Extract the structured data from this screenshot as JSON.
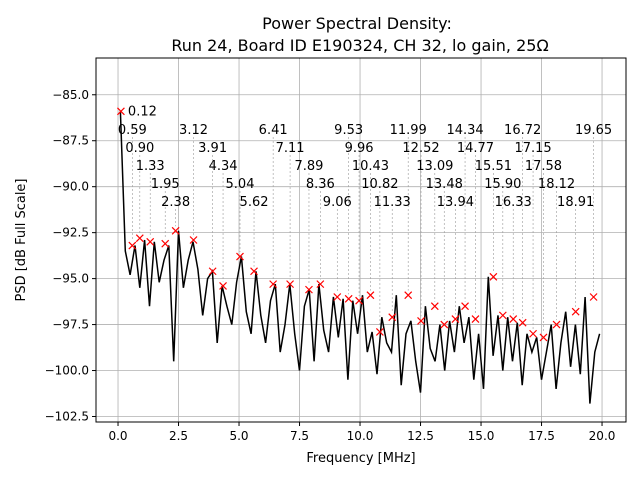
{
  "chart_data": {
    "type": "line",
    "title": "Power Spectral Density:",
    "subtitle": "Run 24, Board ID E190324, CH 32, lo gain, 25Ω",
    "xlabel": "Frequency [MHz]",
    "ylabel": "PSD [dB Full Scale]",
    "xlim": [
      -0.91,
      20.99
    ],
    "ylim": [
      -102.8,
      -83.0
    ],
    "xticks": [
      0.0,
      2.5,
      5.0,
      7.5,
      10.0,
      12.5,
      15.0,
      17.5,
      20.0
    ],
    "xtick_labels": [
      "0.0",
      "2.5",
      "5.0",
      "7.5",
      "10.0",
      "12.5",
      "15.0",
      "17.5",
      "20.0"
    ],
    "yticks": [
      -85.0,
      -87.5,
      -90.0,
      -92.5,
      -95.0,
      -97.5,
      -100.0,
      -102.5
    ],
    "ytick_labels": [
      "−85.0",
      "−87.5",
      "−90.0",
      "−92.5",
      "−95.0",
      "−97.5",
      "−100.0",
      "−102.5"
    ],
    "grid": true,
    "line_color": "#000000",
    "marker_color": "#ff0000",
    "trace": {
      "x_start": 0.1,
      "x_step": 0.2,
      "y": [
        -85.9,
        -93.5,
        -94.8,
        -93.2,
        -95.5,
        -92.9,
        -96.5,
        -93.0,
        -95.2,
        -94.0,
        -93.2,
        -99.5,
        -92.4,
        -95.5,
        -94.0,
        -93.0,
        -94.5,
        -97.0,
        -95.0,
        -94.6,
        -98.5,
        -95.4,
        -96.5,
        -97.5,
        -95.2,
        -93.8,
        -96.8,
        -98.0,
        -94.6,
        -97.0,
        -98.5,
        -96.2,
        -95.3,
        -99.0,
        -97.5,
        -95.3,
        -98.0,
        -100.0,
        -96.5,
        -95.6,
        -99.5,
        -95.3,
        -97.8,
        -99.0,
        -96.0,
        -98.2,
        -96.1,
        -100.5,
        -96.2,
        -98.0,
        -95.9,
        -99.0,
        -97.9,
        -100.2,
        -97.1,
        -98.5,
        -99.0,
        -95.9,
        -100.8,
        -98.0,
        -97.3,
        -99.5,
        -101.2,
        -96.5,
        -98.8,
        -99.5,
        -97.5,
        -100.0,
        -97.3,
        -99.0,
        -96.5,
        -98.5,
        -97.1,
        -100.5,
        -98.0,
        -101.0,
        -94.9,
        -99.2,
        -97.0,
        -100.0,
        -97.1,
        -99.5,
        -97.4,
        -100.8,
        -98.0,
        -99.0,
        -98.2,
        -100.5,
        -99.0,
        -97.5,
        -101.0,
        -98.5,
        -96.8,
        -99.8,
        -97.5,
        -100.2,
        -96.0,
        -101.8,
        -99.0,
        -98.0
      ]
    },
    "peaks": [
      {
        "x": 0.12,
        "y": -85.9,
        "label": "0.12"
      },
      {
        "x": 0.59,
        "y": -93.2,
        "label": "0.59"
      },
      {
        "x": 0.9,
        "y": -92.8,
        "label": "0.90"
      },
      {
        "x": 1.33,
        "y": -93.0,
        "label": "1.33"
      },
      {
        "x": 1.95,
        "y": -93.1,
        "label": "1.95"
      },
      {
        "x": 2.38,
        "y": -92.4,
        "label": "2.38"
      },
      {
        "x": 3.12,
        "y": -92.9,
        "label": "3.12"
      },
      {
        "x": 3.91,
        "y": -94.6,
        "label": "3.91"
      },
      {
        "x": 4.34,
        "y": -95.4,
        "label": "4.34"
      },
      {
        "x": 5.04,
        "y": -93.8,
        "label": "5.04"
      },
      {
        "x": 5.62,
        "y": -94.6,
        "label": "5.62"
      },
      {
        "x": 6.41,
        "y": -95.3,
        "label": "6.41"
      },
      {
        "x": 7.11,
        "y": -95.3,
        "label": "7.11"
      },
      {
        "x": 7.89,
        "y": -95.6,
        "label": "7.89"
      },
      {
        "x": 8.36,
        "y": -95.3,
        "label": "8.36"
      },
      {
        "x": 9.06,
        "y": -96.0,
        "label": "9.06"
      },
      {
        "x": 9.53,
        "y": -96.1,
        "label": "9.53"
      },
      {
        "x": 9.96,
        "y": -96.2,
        "label": "9.96"
      },
      {
        "x": 10.43,
        "y": -95.9,
        "label": "10.43"
      },
      {
        "x": 10.82,
        "y": -97.9,
        "label": "10.82"
      },
      {
        "x": 11.33,
        "y": -97.1,
        "label": "11.33"
      },
      {
        "x": 11.99,
        "y": -95.9,
        "label": "11.99"
      },
      {
        "x": 12.52,
        "y": -97.3,
        "label": "12.52"
      },
      {
        "x": 13.09,
        "y": -96.5,
        "label": "13.09"
      },
      {
        "x": 13.48,
        "y": -97.5,
        "label": "13.48"
      },
      {
        "x": 13.94,
        "y": -97.2,
        "label": "13.94"
      },
      {
        "x": 14.34,
        "y": -96.5,
        "label": "14.34"
      },
      {
        "x": 14.77,
        "y": -97.2,
        "label": "14.77"
      },
      {
        "x": 15.51,
        "y": -94.9,
        "label": "15.51"
      },
      {
        "x": 15.9,
        "y": -97.0,
        "label": "15.90"
      },
      {
        "x": 16.33,
        "y": -97.2,
        "label": "16.33"
      },
      {
        "x": 16.72,
        "y": -97.4,
        "label": "16.72"
      },
      {
        "x": 17.15,
        "y": -98.0,
        "label": "17.15"
      },
      {
        "x": 17.58,
        "y": -98.2,
        "label": "17.58"
      },
      {
        "x": 18.12,
        "y": -97.5,
        "label": "18.12"
      },
      {
        "x": 18.91,
        "y": -96.8,
        "label": "18.91"
      },
      {
        "x": 19.65,
        "y": -96.0,
        "label": "19.65"
      }
    ]
  }
}
